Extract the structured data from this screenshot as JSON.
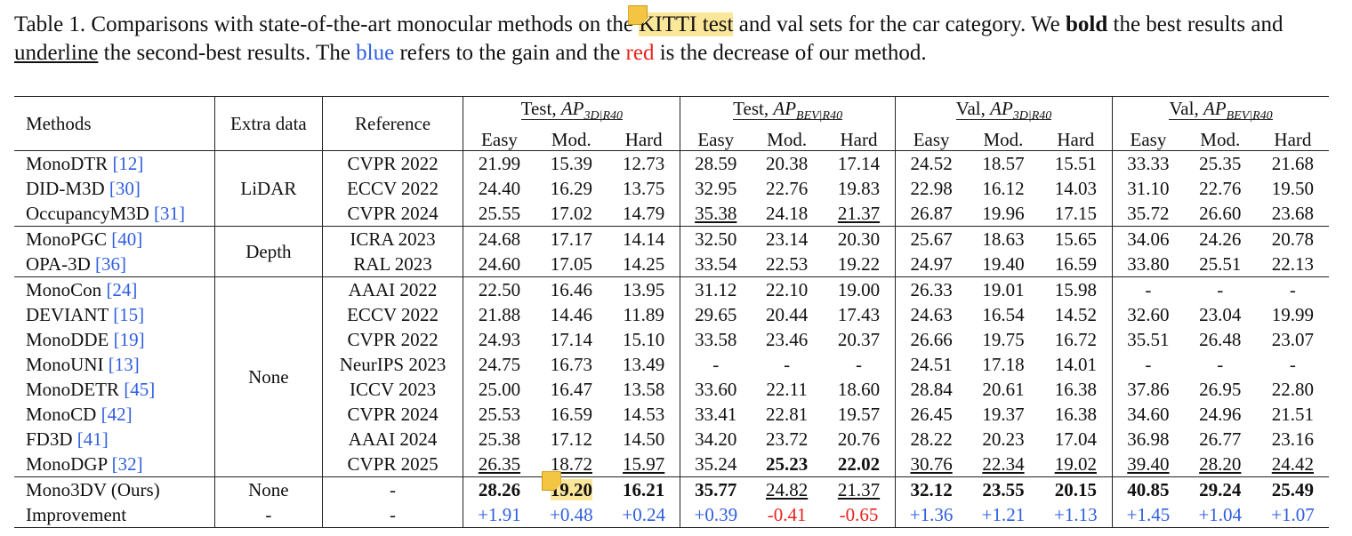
{
  "caption": {
    "part1": "Table 1. Comparisons with state-of-the-art monocular methods on the ",
    "highlight": "KITTI test",
    "part2": " and val sets for the car category. We ",
    "bold_word": "bold",
    "part3": " the best results and ",
    "underline_word": "underline",
    "part4": " the second-best results. The ",
    "blue_word": "blue",
    "part5": " refers to the gain and the ",
    "red_word": "red",
    "part6": " is the decrease of our method."
  },
  "colors": {
    "blue": "#2f5ee0",
    "red": "#e8231c",
    "highlight": "#fbe79a",
    "note_icon": "#f4c542"
  },
  "icons": [
    "sticky-note-icon"
  ],
  "header": {
    "methods": "Methods",
    "extra_data": "Extra data",
    "reference": "Reference",
    "groups": [
      {
        "prefix": "Test, ",
        "ap": "AP",
        "sub": "3D|R40"
      },
      {
        "prefix": "Test, ",
        "ap": "AP",
        "sub": "BEV|R40"
      },
      {
        "prefix": "Val, ",
        "ap": "AP",
        "sub": "3D|R40"
      },
      {
        "prefix": "Val, ",
        "ap": "AP",
        "sub": "BEV|R40"
      }
    ],
    "subcols": [
      "Easy",
      "Mod.",
      "Hard"
    ]
  },
  "rows": [
    {
      "name": "MonoDTR ",
      "ref": "[12]",
      "venue": "CVPR 2022",
      "vals": [
        "21.99",
        "15.39",
        "12.73",
        "28.59",
        "20.38",
        "17.14",
        "24.52",
        "18.57",
        "15.51",
        "33.33",
        "25.35",
        "21.68"
      ],
      "fmt": []
    },
    {
      "name": "DID-M3D ",
      "ref": "[30]",
      "venue": "ECCV 2022",
      "vals": [
        "24.40",
        "16.29",
        "13.75",
        "32.95",
        "22.76",
        "19.83",
        "22.98",
        "16.12",
        "14.03",
        "31.10",
        "22.76",
        "19.50"
      ],
      "fmt": []
    },
    {
      "name": "OccupancyM3D ",
      "ref": "[31]",
      "venue": "CVPR 2024",
      "vals": [
        "25.55",
        "17.02",
        "14.79",
        "35.38",
        "24.18",
        "21.37",
        "26.87",
        "19.96",
        "17.15",
        "35.72",
        "26.60",
        "23.68"
      ],
      "fmt": [
        "",
        "",
        "",
        "second",
        "",
        "second",
        "",
        "",
        "",
        "",
        "",
        ""
      ]
    },
    {
      "name": "MonoPGC ",
      "ref": "[40]",
      "venue": "ICRA 2023",
      "vals": [
        "24.68",
        "17.17",
        "14.14",
        "32.50",
        "23.14",
        "20.30",
        "25.67",
        "18.63",
        "15.65",
        "34.06",
        "24.26",
        "20.78"
      ],
      "fmt": []
    },
    {
      "name": "OPA-3D ",
      "ref": "[36]",
      "venue": "RAL 2023",
      "vals": [
        "24.60",
        "17.05",
        "14.25",
        "33.54",
        "22.53",
        "19.22",
        "24.97",
        "19.40",
        "16.59",
        "33.80",
        "25.51",
        "22.13"
      ],
      "fmt": []
    },
    {
      "name": "MonoCon ",
      "ref": "[24]",
      "venue": "AAAI 2022",
      "vals": [
        "22.50",
        "16.46",
        "13.95",
        "31.12",
        "22.10",
        "19.00",
        "26.33",
        "19.01",
        "15.98",
        "-",
        "-",
        "-"
      ],
      "fmt": []
    },
    {
      "name": "DEVIANT ",
      "ref": "[15]",
      "venue": "ECCV 2022",
      "vals": [
        "21.88",
        "14.46",
        "11.89",
        "29.65",
        "20.44",
        "17.43",
        "24.63",
        "16.54",
        "14.52",
        "32.60",
        "23.04",
        "19.99"
      ],
      "fmt": []
    },
    {
      "name": "MonoDDE ",
      "ref": "[19]",
      "venue": "CVPR 2022",
      "vals": [
        "24.93",
        "17.14",
        "15.10",
        "33.58",
        "23.46",
        "20.37",
        "26.66",
        "19.75",
        "16.72",
        "35.51",
        "26.48",
        "23.07"
      ],
      "fmt": []
    },
    {
      "name": "MonoUNI ",
      "ref": "[13]",
      "venue": "NeurIPS 2023",
      "vals": [
        "24.75",
        "16.73",
        "13.49",
        "-",
        "-",
        "-",
        "24.51",
        "17.18",
        "14.01",
        "-",
        "-",
        "-"
      ],
      "fmt": []
    },
    {
      "name": "MonoDETR ",
      "ref": "[45]",
      "venue": "ICCV 2023",
      "vals": [
        "25.00",
        "16.47",
        "13.58",
        "33.60",
        "22.11",
        "18.60",
        "28.84",
        "20.61",
        "16.38",
        "37.86",
        "26.95",
        "22.80"
      ],
      "fmt": []
    },
    {
      "name": "MonoCD ",
      "ref": "[42]",
      "venue": "CVPR 2024",
      "vals": [
        "25.53",
        "16.59",
        "14.53",
        "33.41",
        "22.81",
        "19.57",
        "26.45",
        "19.37",
        "16.38",
        "34.60",
        "24.96",
        "21.51"
      ],
      "fmt": []
    },
    {
      "name": "FD3D ",
      "ref": "[41]",
      "venue": "AAAI 2024",
      "vals": [
        "25.38",
        "17.12",
        "14.50",
        "34.20",
        "23.72",
        "20.76",
        "28.22",
        "20.23",
        "17.04",
        "36.98",
        "26.77",
        "23.16"
      ],
      "fmt": []
    },
    {
      "name": "MonoDGP ",
      "ref": "[32]",
      "venue": "CVPR 2025",
      "vals": [
        "26.35",
        "18.72",
        "15.97",
        "35.24",
        "25.23",
        "22.02",
        "30.76",
        "22.34",
        "19.02",
        "39.40",
        "28.20",
        "24.42"
      ],
      "fmt": [
        "second",
        "second",
        "second",
        "",
        "best",
        "best",
        "second",
        "second",
        "second",
        "second",
        "second",
        "second"
      ]
    },
    {
      "name": "Mono3DV (Ours)",
      "ref": "",
      "venue": "-",
      "extra": "None",
      "vals": [
        "28.26",
        "19.20",
        "16.21",
        "35.77",
        "24.82",
        "21.37",
        "32.12",
        "23.55",
        "20.15",
        "40.85",
        "29.24",
        "25.49"
      ],
      "fmt": [
        "best",
        "best",
        "best",
        "best",
        "second",
        "second",
        "best",
        "best",
        "best",
        "best",
        "best",
        "best"
      ]
    },
    {
      "name": "Improvement",
      "ref": "",
      "venue": "-",
      "extra": "-",
      "vals": [
        "+1.91",
        "+0.48",
        "+0.24",
        "+0.39",
        "-0.41",
        "-0.65",
        "+1.36",
        "+1.21",
        "+1.13",
        "+1.45",
        "+1.04",
        "+1.07"
      ],
      "fmt": [
        "pos",
        "pos",
        "pos",
        "pos",
        "neg",
        "neg",
        "pos",
        "pos",
        "pos",
        "pos",
        "pos",
        "pos"
      ]
    }
  ],
  "extra_groups": [
    {
      "label": "LiDAR",
      "start": 0,
      "span": 3
    },
    {
      "label": "Depth",
      "start": 3,
      "span": 2
    },
    {
      "label": "None",
      "start": 5,
      "span": 8
    }
  ]
}
